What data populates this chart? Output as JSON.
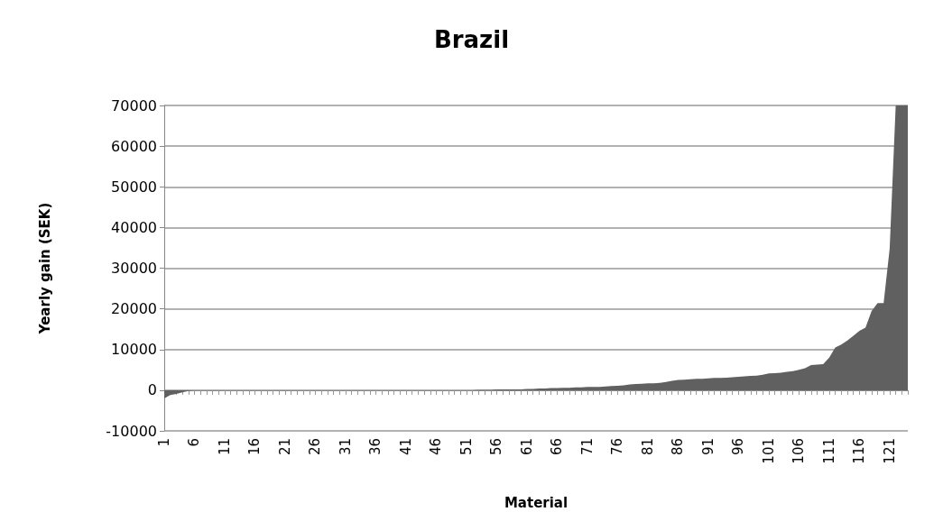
{
  "chart_data": {
    "type": "area",
    "title": "Brazil",
    "xlabel": "Material",
    "ylabel": "Yearly gain (SEK)",
    "categories": [
      "1",
      null,
      null,
      null,
      null,
      "6",
      null,
      null,
      null,
      null,
      "11",
      null,
      null,
      null,
      null,
      "16",
      null,
      null,
      null,
      null,
      "21",
      null,
      null,
      null,
      null,
      "26",
      null,
      null,
      null,
      null,
      "31",
      null,
      null,
      null,
      null,
      "36",
      null,
      null,
      null,
      null,
      "41",
      null,
      null,
      null,
      null,
      "46",
      null,
      null,
      null,
      null,
      "51",
      null,
      null,
      null,
      null,
      "56",
      null,
      null,
      null,
      null,
      "61",
      null,
      null,
      null,
      null,
      "66",
      null,
      null,
      null,
      null,
      "71",
      null,
      null,
      null,
      null,
      "76",
      null,
      null,
      null,
      null,
      "81",
      null,
      null,
      null,
      null,
      "86",
      null,
      null,
      null,
      null,
      "91",
      null,
      null,
      null,
      null,
      "96",
      null,
      null,
      null,
      null,
      "101",
      null,
      null,
      null,
      null,
      "106",
      null,
      null,
      null,
      null,
      "111",
      null,
      null,
      null,
      null,
      "116",
      null,
      null,
      null,
      null,
      "121",
      null,
      null,
      null
    ],
    "values": [
      -2000,
      -1200,
      -900,
      -500,
      -200,
      0,
      0,
      0,
      0,
      0,
      0,
      0,
      0,
      0,
      0,
      0,
      0,
      0,
      0,
      0,
      0,
      0,
      0,
      0,
      0,
      0,
      0,
      0,
      0,
      0,
      0,
      0,
      0,
      0,
      0,
      0,
      0,
      0,
      0,
      0,
      0,
      0,
      0,
      0,
      0,
      0,
      0,
      0,
      0,
      0,
      0,
      0,
      100,
      100,
      100,
      200,
      200,
      200,
      200,
      200,
      300,
      300,
      400,
      400,
      500,
      500,
      600,
      600,
      700,
      700,
      800,
      800,
      800,
      900,
      1000,
      1100,
      1200,
      1400,
      1500,
      1600,
      1700,
      1700,
      1800,
      2000,
      2300,
      2500,
      2600,
      2700,
      2800,
      2800,
      2900,
      3000,
      3000,
      3100,
      3200,
      3300,
      3400,
      3500,
      3600,
      3800,
      4100,
      4200,
      4300,
      4500,
      4700,
      5000,
      5400,
      6200,
      6300,
      6400,
      8000,
      10500,
      11200,
      12200,
      13400,
      14600,
      15400,
      19400,
      21400,
      21400,
      34800,
      70000,
      70000,
      70000
    ],
    "color": "#606060",
    "ylim": [
      -10000,
      70000
    ],
    "yticks": [
      -10000,
      0,
      10000,
      20000,
      30000,
      40000,
      50000,
      60000,
      70000
    ],
    "grid": "y"
  }
}
